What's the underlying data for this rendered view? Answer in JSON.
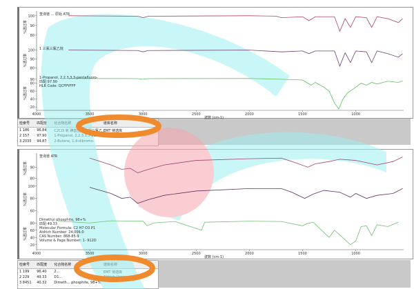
{
  "x_axis": {
    "label": "波数 (cm-1)",
    "ticks": [
      4000,
      3500,
      3000,
      2500,
      2000,
      1500,
      1000
    ],
    "range": [
      4000,
      550
    ]
  },
  "y_axis_label": "%透过率",
  "top_panel": {
    "traces": [
      {
        "title": "查询谱 ... 原始 ATR",
        "color": "#b04060",
        "yticks": [
          100,
          90,
          80
        ],
        "yrange": [
          75,
          102
        ],
        "points": [
          [
            3700,
            100
          ],
          [
            3050,
            99.5
          ],
          [
            3000,
            98
          ],
          [
            2950,
            99.5
          ],
          [
            2000,
            100
          ],
          [
            1750,
            99.6
          ],
          [
            1700,
            98
          ],
          [
            1500,
            99
          ],
          [
            1440,
            95
          ],
          [
            1380,
            99
          ],
          [
            1200,
            99
          ],
          [
            1150,
            84
          ],
          [
            1100,
            97
          ],
          [
            1050,
            88
          ],
          [
            1000,
            99
          ],
          [
            900,
            98
          ],
          [
            850,
            88
          ],
          [
            800,
            99
          ],
          [
            700,
            97
          ],
          [
            600,
            93
          ],
          [
            560,
            97
          ]
        ]
      },
      {
        "title": "1 三氯三氟乙烷",
        "color": "#704070",
        "yticks": [
          100,
          90,
          80
        ],
        "yrange": [
          75,
          102
        ],
        "points": [
          [
            3700,
            100
          ],
          [
            3050,
            99.5
          ],
          [
            3000,
            98
          ],
          [
            2950,
            99.5
          ],
          [
            2000,
            100
          ],
          [
            1700,
            98
          ],
          [
            1500,
            99
          ],
          [
            1440,
            96
          ],
          [
            1380,
            99
          ],
          [
            1200,
            99
          ],
          [
            1150,
            82
          ],
          [
            1100,
            97
          ],
          [
            1050,
            86
          ],
          [
            1000,
            99
          ],
          [
            900,
            98
          ],
          [
            850,
            86
          ],
          [
            800,
            99
          ],
          [
            700,
            96
          ],
          [
            600,
            92
          ],
          [
            560,
            96
          ]
        ]
      },
      {
        "title": "1-Propanol, 2,2,3,3,3-pentafluoro-",
        "color": "#60c060",
        "yticks": [
          90,
          80,
          60,
          40,
          20
        ],
        "yrange": [
          15,
          95
        ],
        "info": [
          "匹配:97.90",
          "HLR Code:  QCFPYFFF"
        ],
        "points": [
          [
            3700,
            92
          ],
          [
            3050,
            91.5
          ],
          [
            3000,
            90
          ],
          [
            2950,
            91.5
          ],
          [
            2000,
            92
          ],
          [
            1700,
            90
          ],
          [
            1500,
            88
          ],
          [
            1420,
            75
          ],
          [
            1380,
            82
          ],
          [
            1300,
            70
          ],
          [
            1250,
            60
          ],
          [
            1200,
            30
          ],
          [
            1160,
            15
          ],
          [
            1120,
            40
          ],
          [
            1080,
            55
          ],
          [
            1000,
            70
          ],
          [
            950,
            80
          ],
          [
            900,
            75
          ],
          [
            850,
            82
          ],
          [
            800,
            78
          ],
          [
            700,
            85
          ],
          [
            600,
            82
          ],
          [
            560,
            86
          ]
        ]
      }
    ],
    "table": {
      "headers": [
        "检索号",
        "匹配度",
        "化合物名称",
        "谱库名称"
      ],
      "rows": [
        [
          "1 186",
          "96.84",
          "C2Cl3 氧 碘基团取 三氯三氟乙烷",
          "EMT 待选库"
        ],
        [
          "2 157",
          "97.90",
          "1-Propanol, 2,2,3,3,3-pe...",
          "Vapor Phase"
        ],
        [
          "3 2035",
          "94.87",
          "2-Butene, 1,4-dibromo-",
          ""
        ]
      ]
    }
  },
  "bottom_panel": {
    "traces": [
      {
        "title": "查询谱 ATR",
        "color": "#a04070",
        "yticks": [
          90,
          80
        ],
        "yrange": [
          78,
          100
        ],
        "points": [
          [
            3500,
            98
          ],
          [
            3300,
            92
          ],
          [
            3200,
            88
          ],
          [
            3120,
            89
          ],
          [
            3050,
            85
          ],
          [
            2950,
            88
          ],
          [
            2800,
            92
          ],
          [
            2500,
            96
          ],
          [
            2000,
            97.5
          ],
          [
            1700,
            98
          ],
          [
            1600,
            95
          ],
          [
            1450,
            90
          ],
          [
            1380,
            93
          ],
          [
            1250,
            95
          ],
          [
            1150,
            97
          ],
          [
            1000,
            96
          ],
          [
            800,
            92
          ],
          [
            650,
            95
          ],
          [
            560,
            99
          ]
        ]
      },
      {
        "title": "",
        "color": "#603060",
        "yticks": [
          100,
          80,
          60
        ],
        "yrange": [
          55,
          102
        ],
        "points": [
          [
            3500,
            98
          ],
          [
            3300,
            88
          ],
          [
            3200,
            80
          ],
          [
            3120,
            82
          ],
          [
            3050,
            72
          ],
          [
            2950,
            78
          ],
          [
            2800,
            85
          ],
          [
            2500,
            92
          ],
          [
            2000,
            96
          ],
          [
            1700,
            96
          ],
          [
            1600,
            90
          ],
          [
            1480,
            80
          ],
          [
            1400,
            87
          ],
          [
            1300,
            93
          ],
          [
            1150,
            90
          ],
          [
            1050,
            82
          ],
          [
            1000,
            88
          ],
          [
            900,
            80
          ],
          [
            800,
            85
          ],
          [
            650,
            88
          ],
          [
            560,
            96
          ]
        ]
      },
      {
        "title": "Dimethyl phosphite, 98+%",
        "color": "#70c070",
        "yticks": [
          80,
          60,
          40,
          20
        ],
        "yrange": [
          10,
          90
        ],
        "info": [
          "匹配:49.33",
          "Molecular Formula:  C2 H7 O3 P1",
          "Aldrich Number:     24,006-0",
          "CAS Number:        868-85-9",
          "Volume & Page Number:  1- 912D"
        ],
        "points": [
          [
            3800,
            85
          ],
          [
            3500,
            80
          ],
          [
            3300,
            86
          ],
          [
            3000,
            85
          ],
          [
            2960,
            72
          ],
          [
            2900,
            80
          ],
          [
            2700,
            84
          ],
          [
            2450,
            60
          ],
          [
            2420,
            82
          ],
          [
            2000,
            85
          ],
          [
            1700,
            84
          ],
          [
            1500,
            72
          ],
          [
            1460,
            78
          ],
          [
            1400,
            82
          ],
          [
            1250,
            40
          ],
          [
            1200,
            60
          ],
          [
            1050,
            20
          ],
          [
            1000,
            30
          ],
          [
            950,
            70
          ],
          [
            900,
            72
          ],
          [
            850,
            45
          ],
          [
            800,
            75
          ],
          [
            700,
            70
          ],
          [
            600,
            82
          ]
        ]
      }
    ],
    "table": {
      "headers": [
        "检索号",
        "匹配度",
        "化合物名称",
        "谱库名称"
      ],
      "rows": [
        [
          "1 199",
          "96.40",
          "2...",
          "EMT 待选库"
        ],
        [
          "2 229",
          "49.33",
          "D1...",
          "Aldrich Vapor"
        ],
        [
          "3 8451",
          "40.32",
          "Dimeth...  phosphite, 98+%",
          ""
        ]
      ]
    }
  },
  "watermark_colors": {
    "cyan": "#9eeff0",
    "pink": "#f7a5ae",
    "orange": "#ef8a2e"
  }
}
